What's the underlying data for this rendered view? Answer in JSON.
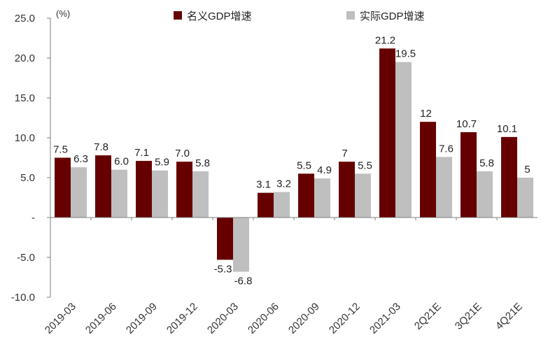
{
  "chart_data": {
    "type": "bar",
    "unit": "(%)",
    "categories": [
      "2019-03",
      "2019-06",
      "2019-09",
      "2019-12",
      "2020-03",
      "2020-06",
      "2020-09",
      "2020-12",
      "2021-03",
      "2Q21E",
      "3Q21E",
      "4Q21E"
    ],
    "series": [
      {
        "name": "名义GDP增速",
        "color": "#660000",
        "values": [
          7.5,
          7.8,
          7.1,
          7.0,
          -5.3,
          3.1,
          5.5,
          7,
          21.2,
          12,
          10.7,
          10.1
        ],
        "labels": [
          "7.5",
          "7.8",
          "7.1",
          "7.0",
          "-5.3",
          "3.1",
          "5.5",
          "7",
          "21.2",
          "12",
          "10.7",
          "10.1"
        ]
      },
      {
        "name": "实际GDP增速",
        "color": "#bfbfbf",
        "values": [
          6.3,
          6.0,
          5.9,
          5.8,
          -6.8,
          3.2,
          4.9,
          5.5,
          19.5,
          7.6,
          5.8,
          5
        ],
        "labels": [
          "6.3",
          "6.0",
          "5.9",
          "5.8",
          "-6.8",
          "3.2",
          "4.9",
          "5.5",
          "19.5",
          "7.6",
          "5.8",
          "5"
        ]
      }
    ],
    "ylim": [
      -10,
      25
    ],
    "yticks": [
      -10,
      -5,
      0,
      5,
      10,
      15,
      20,
      25
    ],
    "ytick_labels": [
      "-10.0",
      "-5.0",
      "-",
      "5.0",
      "10.0",
      "15.0",
      "20.0",
      "25.0"
    ],
    "legend_position": "top-center",
    "grid": false,
    "xtick_rotation": -45
  }
}
